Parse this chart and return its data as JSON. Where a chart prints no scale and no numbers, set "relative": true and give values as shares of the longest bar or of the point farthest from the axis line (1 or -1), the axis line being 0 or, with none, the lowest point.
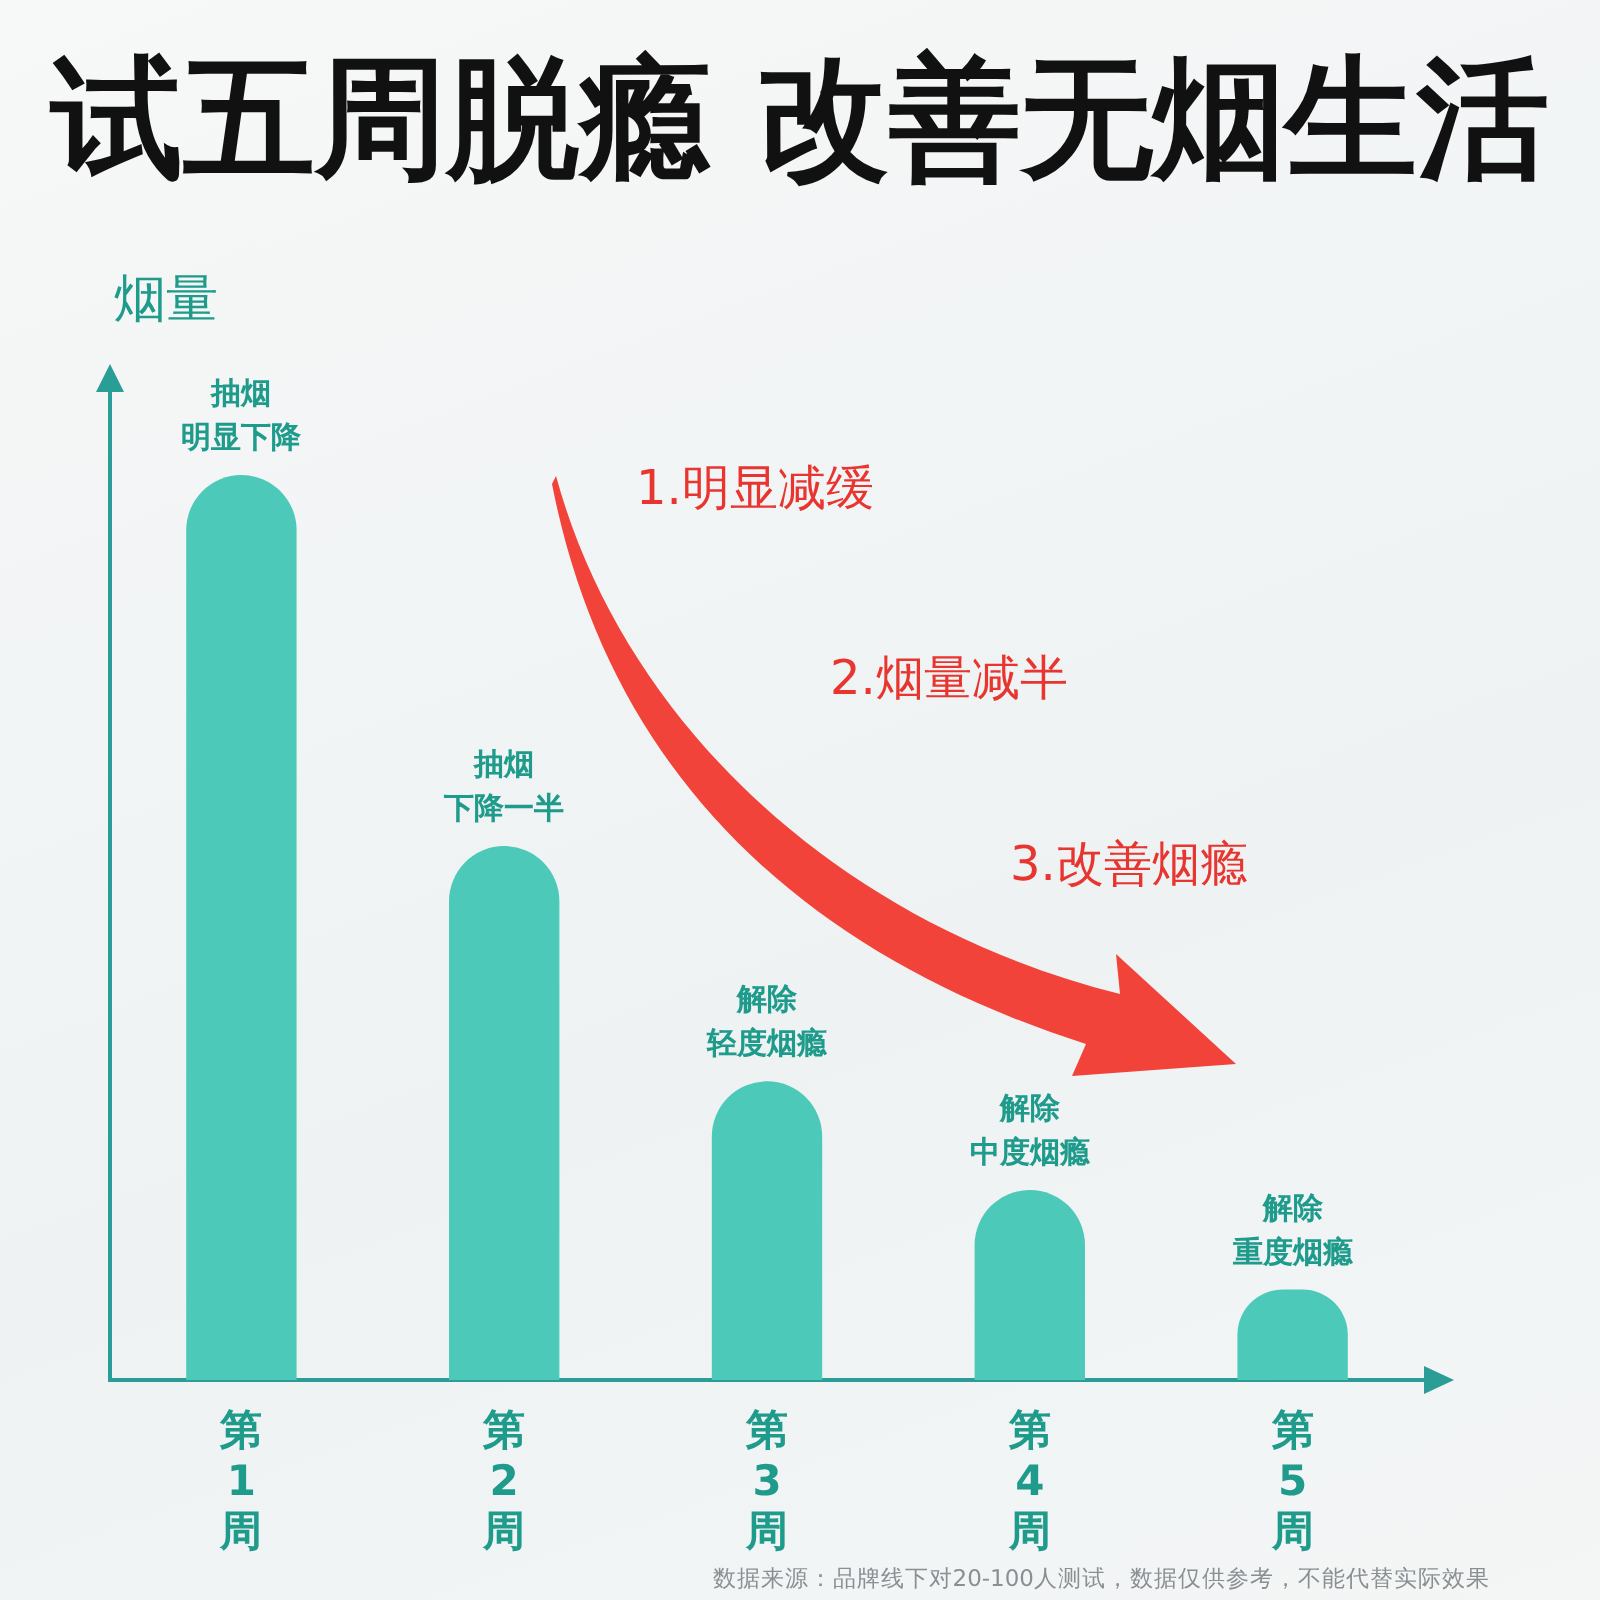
{
  "chart_data": {
    "type": "bar",
    "title": "试五周脱瘾 改善无烟生活",
    "ylabel": "烟量",
    "categories": [
      "第1周",
      "第2周",
      "第3周",
      "第4周",
      "第5周"
    ],
    "values": [
      1,
      0.59,
      0.33,
      0.21,
      0.1
    ],
    "color": "#4cc9b8",
    "relative": true,
    "annotations": [
      {
        "text": "抽烟明显下降",
        "x": "第1周",
        "y": 1
      },
      {
        "text": "抽烟下降一半",
        "x": "第2周",
        "y": 0.59
      },
      {
        "text": "解除轻度烟瘾",
        "x": "第3周",
        "y": 0.33
      },
      {
        "text": "解除中度烟瘾",
        "x": "第4周",
        "y": 0.21
      },
      {
        "text": "解除重度烟瘾",
        "x": "第5周",
        "y": 0.1
      },
      "1.明显减缓",
      "2.烟量减半",
      "3.改善烟瘾",
      "数据来源：品牌线下对20-100人测试，数据仅供参考，不能代替实际效果"
    ]
  }
}
